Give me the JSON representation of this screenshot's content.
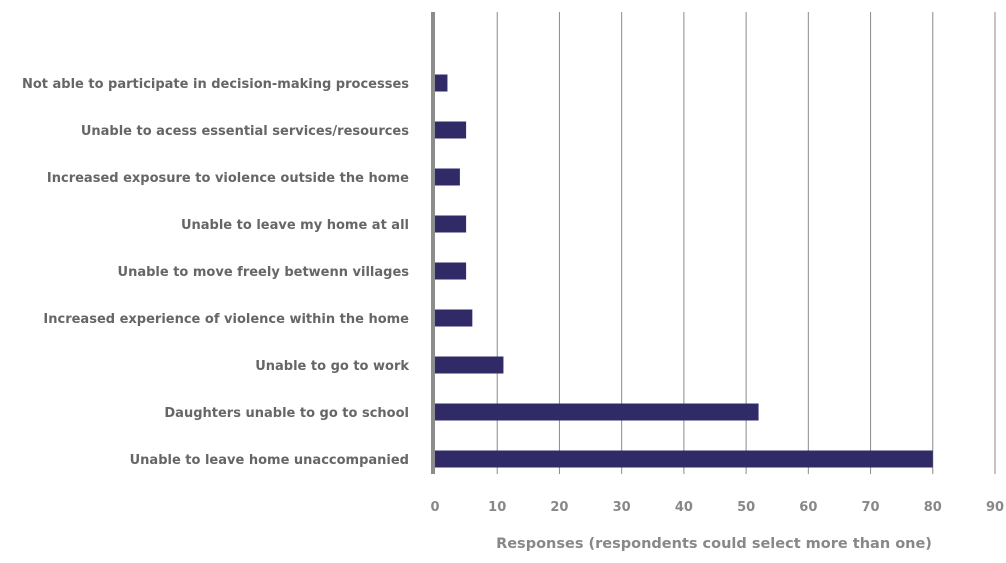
{
  "chart_data": {
    "type": "bar",
    "orientation": "horizontal",
    "categories": [
      "Not able to participate in decision-making processes",
      "Unable to acess essential services/resources",
      "Increased exposure to violence outside the home",
      "Unable to leave my home at all",
      "Unable to move freely betwenn villages",
      "Increased experience of violence within the home",
      "Unable to go to work",
      "Daughters unable to go to school ",
      "Unable to leave home unaccompanied"
    ],
    "values": [
      2,
      5,
      4,
      5,
      5,
      6,
      11,
      52,
      80
    ],
    "xlabel": "Responses (respondents could select more than one)",
    "ylabel": "",
    "xlim": [
      0,
      90
    ],
    "xticks": [
      0,
      10,
      20,
      30,
      40,
      50,
      60,
      70,
      80,
      90
    ],
    "grid": "vertical",
    "legend": "none",
    "colors": {
      "bar": "#302a67",
      "grid": "#8a8a8a",
      "axis": "#8c8c8c"
    }
  }
}
